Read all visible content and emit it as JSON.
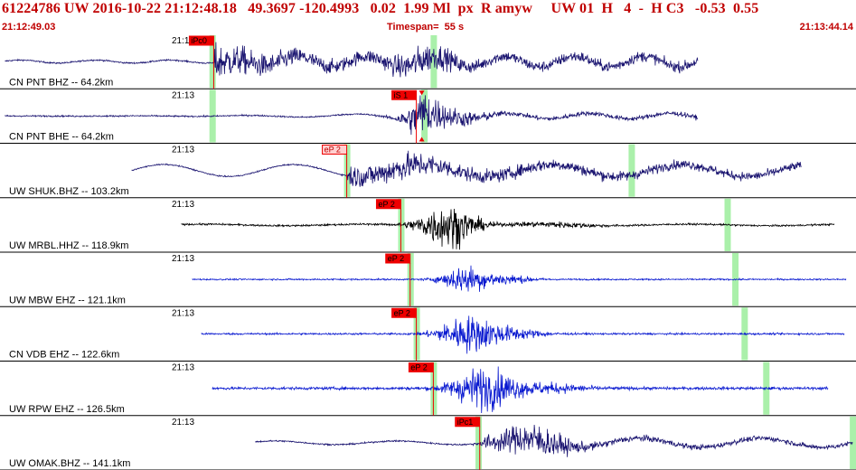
{
  "header": {
    "title": "61224786 UW 2016-10-22 21:12:48.18   49.3697 -120.4993   0.02  1.99 Ml  px  R amyw     UW 01  H   4  -  H C3   -0.53  0.55",
    "start_time": "21:12:49.03",
    "timespan": "Timespan=  55 s",
    "end_time": "21:13:44.14"
  },
  "colors": {
    "header_text": "#c00000",
    "pick_box": "#ee0000",
    "pick_line": "#ee0000",
    "marker": "#aaf0aa",
    "trace_dark": "#1a1470",
    "trace_black": "#000000",
    "trace_blue": "#0a1ad0"
  },
  "traces": [
    {
      "time_label": "21:13",
      "station": "CN PNT BHZ -- 64.2km",
      "pick_label": "iPc0",
      "pick_style": "filled",
      "color": "dark",
      "type": "bhz1",
      "pick_s": 13.7,
      "green_a": 13.6,
      "green_b": 27.9,
      "start_s": 0.2,
      "end_s": 45.0,
      "amp": 0.5
    },
    {
      "time_label": "21:13",
      "station": "CN PNT BHE -- 64.2km",
      "pick_label": "iS 1",
      "pick_style": "filled",
      "color": "dark",
      "type": "bhe",
      "pick_s": 26.8,
      "green_a": 13.6,
      "green_b": 27.3,
      "start_s": 0.2,
      "end_s": 45.0,
      "amp": 0.5
    },
    {
      "time_label": "21:13",
      "station": "UW SHUK.BHZ -- 103.2km",
      "pick_label": "eP 2",
      "pick_style": "outline",
      "color": "dark",
      "type": "shuk",
      "pick_s": 22.3,
      "green_a": 22.3,
      "green_b": 40.7,
      "start_s": 8.4,
      "end_s": 51.7,
      "amp": 0.5
    },
    {
      "time_label": "21:13",
      "station": "UW MRBL.HHZ -- 118.9km",
      "pick_label": "eP 2",
      "pick_style": "filled",
      "color": "black",
      "type": "mrbl",
      "pick_s": 25.8,
      "green_a": 25.8,
      "green_b": 46.9,
      "start_s": 11.6,
      "end_s": 53.8,
      "amp": 0.5
    },
    {
      "time_label": "21:13",
      "station": "UW MBW EHZ -- 121.1km",
      "pick_label": "eP 2",
      "pick_style": "filled",
      "color": "blue",
      "type": "mbw",
      "pick_s": 26.4,
      "green_a": 26.4,
      "green_b": 47.4,
      "start_s": 12.3,
      "end_s": 54.6,
      "amp": 0.5
    },
    {
      "time_label": "21:13",
      "station": "CN VDB EHZ -- 122.6km",
      "pick_label": "eP 2",
      "pick_style": "filled",
      "color": "blue",
      "type": "vdb",
      "pick_s": 26.8,
      "green_a": 26.8,
      "green_b": 48.0,
      "start_s": 12.9,
      "end_s": 54.5,
      "amp": 0.5
    },
    {
      "time_label": "21:13",
      "station": "UW RPW EHZ -- 126.5km",
      "pick_label": "eP 2",
      "pick_style": "filled",
      "color": "blue",
      "type": "rpw",
      "pick_s": 27.9,
      "green_a": 27.9,
      "green_b": 49.4,
      "start_s": 13.6,
      "end_s": 53.4,
      "amp": 0.5
    },
    {
      "time_label": "21:13",
      "station": "UW OMAK.BHZ -- 141.1km",
      "pick_label": "iPc1",
      "pick_style": "filled",
      "color": "dark",
      "type": "omak",
      "pick_s": 30.9,
      "green_a": 30.8,
      "green_b": 55.0,
      "start_s": 16.4,
      "end_s": 55.0,
      "amp": 0.5
    }
  ]
}
